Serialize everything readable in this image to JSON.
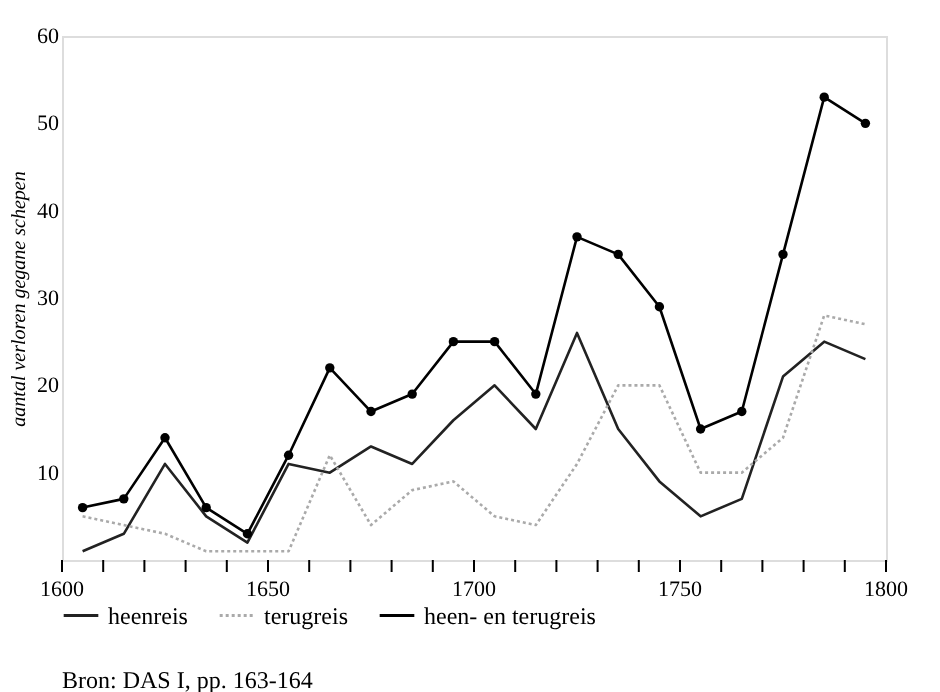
{
  "chart_data": {
    "type": "line",
    "ylabel": "aantal verloren gegane schepen",
    "x": [
      1605,
      1615,
      1625,
      1635,
      1645,
      1655,
      1665,
      1675,
      1685,
      1695,
      1705,
      1715,
      1725,
      1735,
      1745,
      1755,
      1765,
      1775,
      1785,
      1795
    ],
    "series": [
      {
        "name": "heenreis",
        "color": "#222222",
        "line_style": "solid",
        "marker": "none",
        "values": [
          1,
          3,
          11,
          5,
          2,
          11,
          10,
          13,
          11,
          16,
          20,
          15,
          26,
          15,
          9,
          5,
          7,
          21,
          25,
          23
        ]
      },
      {
        "name": "terugreis",
        "color": "#aaaaaa",
        "line_style": "dotted",
        "marker": "none",
        "values": [
          5,
          4,
          3,
          1,
          1,
          1,
          12,
          4,
          8,
          9,
          5,
          4,
          11,
          20,
          20,
          10,
          10,
          14,
          28,
          27
        ]
      },
      {
        "name": "heen- en terugreis",
        "color": "#000000",
        "line_style": "solid",
        "marker": "circle",
        "values": [
          6,
          7,
          14,
          6,
          3,
          12,
          22,
          17,
          19,
          25,
          25,
          19,
          37,
          35,
          29,
          15,
          17,
          35,
          53,
          50
        ]
      }
    ],
    "xlim": [
      1600,
      1800
    ],
    "ylim": [
      0,
      60
    ],
    "xticks": [
      1600,
      {
        "value": 1610,
        "label": null
      },
      {
        "value": 1620,
        "label": null
      },
      {
        "value": 1630,
        "label": null
      },
      {
        "value": 1640,
        "label": null
      },
      1650,
      {
        "value": 1660,
        "label": null
      },
      {
        "value": 1670,
        "label": null
      },
      {
        "value": 1680,
        "label": null
      },
      {
        "value": 1690,
        "label": null
      },
      1700,
      {
        "value": 1710,
        "label": null
      },
      {
        "value": 1720,
        "label": null
      },
      {
        "value": 1730,
        "label": null
      },
      {
        "value": 1740,
        "label": null
      },
      1750,
      {
        "value": 1760,
        "label": null
      },
      {
        "value": 1770,
        "label": null
      },
      {
        "value": 1780,
        "label": null
      },
      {
        "value": 1790,
        "label": null
      },
      1800
    ],
    "yticks": [
      10,
      20,
      30,
      40,
      50,
      60
    ],
    "grid": false,
    "legend": "bottom left",
    "annotations": [
      "Bron: DAS I, pp. 163-164"
    ]
  }
}
